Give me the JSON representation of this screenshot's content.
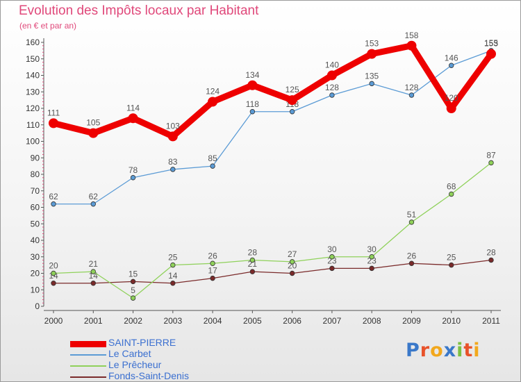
{
  "chart_data": {
    "type": "line",
    "title": "Evolution des Impôts locaux par Habitant",
    "subtitle": "(en € et par an)",
    "x": [
      "2000",
      "2001",
      "2002",
      "2003",
      "2004",
      "2005",
      "2006",
      "2007",
      "2008",
      "2009",
      "2010",
      "2011"
    ],
    "ylim": [
      0,
      160
    ],
    "yticks": [
      0,
      10,
      20,
      30,
      40,
      50,
      60,
      70,
      80,
      90,
      100,
      110,
      120,
      130,
      140,
      150,
      160
    ],
    "grid": false,
    "legend_position": "bottom-left",
    "series": [
      {
        "name": "SAINT-PIERRE",
        "color": "#ee0000",
        "values": [
          111,
          105,
          114,
          103,
          124,
          134,
          125,
          140,
          153,
          158,
          120,
          153
        ]
      },
      {
        "name": "Le Carbet",
        "color": "#5b9bd5",
        "values": [
          62,
          62,
          78,
          83,
          85,
          118,
          118,
          128,
          135,
          128,
          146,
          155
        ]
      },
      {
        "name": "Le Prêcheur",
        "color": "#8fd15a",
        "values": [
          20,
          21,
          5,
          25,
          26,
          28,
          27,
          30,
          30,
          51,
          68,
          87
        ]
      },
      {
        "name": "Fonds-Saint-Denis",
        "color": "#7a2a2a",
        "values": [
          14,
          14,
          15,
          14,
          17,
          21,
          20,
          23,
          23,
          26,
          25,
          28
        ]
      }
    ]
  },
  "logo": {
    "letters": [
      "P",
      "r",
      "o",
      "x",
      "i",
      "t",
      "i"
    ],
    "colors": [
      "#3a78c9",
      "#e8522a",
      "#f2a81d",
      "#3a78c9",
      "#7cc142",
      "#e8522a",
      "#f2a81d"
    ]
  }
}
